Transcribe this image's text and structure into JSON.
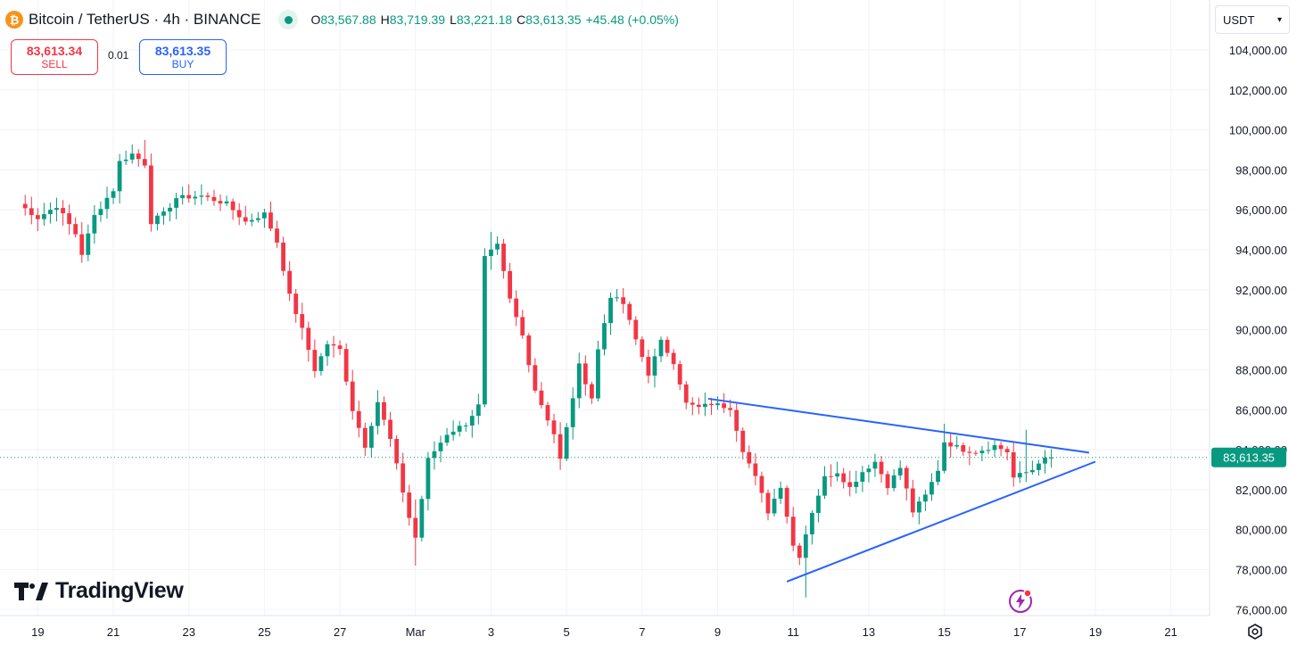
{
  "header": {
    "coin_icon": "bitcoin-icon",
    "coin_glyph": "₿",
    "title": "Bitcoin / TetherUS · 4h · BINANCE",
    "status_dot_color": "#089981",
    "ohlc": {
      "o_label": "O",
      "o_value": "83,567.88",
      "h_label": "H",
      "h_value": "83,719.39",
      "l_label": "L",
      "l_value": "83,221.18",
      "c_label": "C",
      "c_value": "83,613.35",
      "change": "+45.48 (+0.05%)"
    }
  },
  "trade": {
    "sell_price": "83,613.34",
    "sell_label": "SELL",
    "spread": "0.01",
    "buy_price": "83,613.35",
    "buy_label": "BUY"
  },
  "currency": {
    "selected": "USDT",
    "icon": "chevron-down-icon"
  },
  "branding": {
    "logo_text": "TradingView",
    "logo_icon": "tradingview-logo-icon"
  },
  "controls": {
    "settings_icon": "gear-icon",
    "flash_icon": "lightning-icon"
  },
  "colors": {
    "up": "#089981",
    "down": "#f23645",
    "trendline": "#2962ff",
    "price_line": "#089981",
    "grid": "#f0f3fa"
  },
  "chart_data": {
    "type": "candlestick",
    "symbol": "BTCUSDT",
    "interval": "4h",
    "exchange": "BINANCE",
    "ylim": [
      75700,
      106500
    ],
    "y_ticks": [
      76000,
      78000,
      80000,
      82000,
      84000,
      86000,
      88000,
      90000,
      92000,
      94000,
      96000,
      98000,
      100000,
      102000,
      104000
    ],
    "y_tick_labels": [
      "76,000.00",
      "78,000.00",
      "80,000.00",
      "82,000.00",
      "84,000.00",
      "86,000.00",
      "88,000.00",
      "90,000.00",
      "92,000.00",
      "94,000.00",
      "96,000.00",
      "98,000.00",
      "100,000.00",
      "102,000.00",
      "104,000.00"
    ],
    "x_axis_range": [
      "2025-02-18",
      "2025-03-22"
    ],
    "x_ticks": [
      "2025-02-19",
      "2025-02-21",
      "2025-02-23",
      "2025-02-25",
      "2025-02-27",
      "2025-03-01",
      "2025-03-03",
      "2025-03-05",
      "2025-03-07",
      "2025-03-09",
      "2025-03-11",
      "2025-03-13",
      "2025-03-15",
      "2025-03-17",
      "2025-03-19",
      "2025-03-21"
    ],
    "x_tick_labels": [
      "19",
      "21",
      "23",
      "25",
      "27",
      "Mar",
      "3",
      "5",
      "7",
      "9",
      "11",
      "13",
      "15",
      "17",
      "19",
      "21"
    ],
    "last_price": 83613.35,
    "last_price_label": "83,613.35",
    "close_path": [
      [
        "2025-02-18 12:00",
        96300
      ],
      [
        "2025-02-19 00:00",
        95600
      ],
      [
        "2025-02-19 12:00",
        96200
      ],
      [
        "2025-02-20 00:00",
        94800
      ],
      [
        "2025-02-20 04:00",
        93800
      ],
      [
        "2025-02-20 12:00",
        95700
      ],
      [
        "2025-02-20 20:00",
        96600
      ],
      [
        "2025-02-21 00:00",
        97000
      ],
      [
        "2025-02-21 04:00",
        98400
      ],
      [
        "2025-02-21 12:00",
        98800
      ],
      [
        "2025-02-21 20:00",
        98300
      ],
      [
        "2025-02-22 00:00",
        95400
      ],
      [
        "2025-02-22 08:00",
        95800
      ],
      [
        "2025-02-22 16:00",
        96600
      ],
      [
        "2025-02-23 08:00",
        96700
      ],
      [
        "2025-02-24 00:00",
        96300
      ],
      [
        "2025-02-24 12:00",
        95400
      ],
      [
        "2025-02-25 00:00",
        95800
      ],
      [
        "2025-02-25 08:00",
        94400
      ],
      [
        "2025-02-25 16:00",
        91700
      ],
      [
        "2025-02-26 00:00",
        90000
      ],
      [
        "2025-02-26 08:00",
        88000
      ],
      [
        "2025-02-26 16:00",
        89300
      ],
      [
        "2025-02-27 00:00",
        89000
      ],
      [
        "2025-02-27 08:00",
        86000
      ],
      [
        "2025-02-27 16:00",
        84200
      ],
      [
        "2025-02-28 00:00",
        86400
      ],
      [
        "2025-02-28 08:00",
        84500
      ],
      [
        "2025-02-28 20:00",
        80600
      ],
      [
        "2025-03-01 00:00",
        79600
      ],
      [
        "2025-03-01 08:00",
        83500
      ],
      [
        "2025-03-01 20:00",
        84800
      ],
      [
        "2025-03-02 08:00",
        85300
      ],
      [
        "2025-03-02 16:00",
        86200
      ],
      [
        "2025-03-02 20:00",
        93600
      ],
      [
        "2025-03-03 04:00",
        94200
      ],
      [
        "2025-03-03 12:00",
        91500
      ],
      [
        "2025-03-03 20:00",
        89700
      ],
      [
        "2025-03-04 04:00",
        87000
      ],
      [
        "2025-03-04 16:00",
        84800
      ],
      [
        "2025-03-04 20:00",
        83500
      ],
      [
        "2025-03-05 08:00",
        88200
      ],
      [
        "2025-03-05 16:00",
        86600
      ],
      [
        "2025-03-05 20:00",
        89000
      ],
      [
        "2025-03-06 04:00",
        91700
      ],
      [
        "2025-03-06 12:00",
        91300
      ],
      [
        "2025-03-06 20:00",
        89500
      ],
      [
        "2025-03-07 04:00",
        87800
      ],
      [
        "2025-03-07 12:00",
        89400
      ],
      [
        "2025-03-07 20:00",
        88400
      ],
      [
        "2025-03-08 04:00",
        86300
      ],
      [
        "2025-03-08 12:00",
        86100
      ],
      [
        "2025-03-08 20:00",
        86300
      ],
      [
        "2025-03-09 08:00",
        86100
      ],
      [
        "2025-03-09 16:00",
        84000
      ],
      [
        "2025-03-10 00:00",
        82600
      ],
      [
        "2025-03-10 08:00",
        80900
      ],
      [
        "2025-03-10 16:00",
        82200
      ],
      [
        "2025-03-11 00:00",
        79200
      ],
      [
        "2025-03-11 04:00",
        78700
      ],
      [
        "2025-03-11 12:00",
        80900
      ],
      [
        "2025-03-11 20:00",
        82600
      ],
      [
        "2025-03-12 04:00",
        82900
      ],
      [
        "2025-03-12 12:00",
        82100
      ],
      [
        "2025-03-12 20:00",
        82900
      ],
      [
        "2025-03-13 04:00",
        83400
      ],
      [
        "2025-03-13 12:00",
        82200
      ],
      [
        "2025-03-13 20:00",
        83100
      ],
      [
        "2025-03-14 04:00",
        80900
      ],
      [
        "2025-03-14 12:00",
        81700
      ],
      [
        "2025-03-14 20:00",
        83000
      ],
      [
        "2025-03-15 00:00",
        84400
      ],
      [
        "2025-03-15 12:00",
        84000
      ],
      [
        "2025-03-15 20:00",
        83900
      ],
      [
        "2025-03-16 08:00",
        84200
      ],
      [
        "2025-03-16 16:00",
        83900
      ],
      [
        "2025-03-16 20:00",
        82600
      ],
      [
        "2025-03-17 08:00",
        83000
      ],
      [
        "2025-03-17 12:00",
        83400
      ],
      [
        "2025-03-17 20:00",
        83610
      ]
    ],
    "extreme_wicks": [
      [
        "2025-02-21 20:00",
        99500,
        98200
      ],
      [
        "2025-03-01 00:00",
        81500,
        78200
      ],
      [
        "2025-03-03 00:00",
        94900,
        93000
      ],
      [
        "2025-03-11 08:00",
        80200,
        76600
      ],
      [
        "2025-03-15 00:00",
        85300,
        84200
      ],
      [
        "2025-03-17 04:00",
        85000,
        83000
      ]
    ],
    "trendlines": [
      {
        "from": [
          "2025-03-08 18:00",
          86550
        ],
        "to": [
          "2025-03-18 20:00",
          83850
        ]
      },
      {
        "from": [
          "2025-03-10 20:00",
          77400
        ],
        "to": [
          "2025-03-19 00:00",
          83400
        ]
      }
    ]
  }
}
